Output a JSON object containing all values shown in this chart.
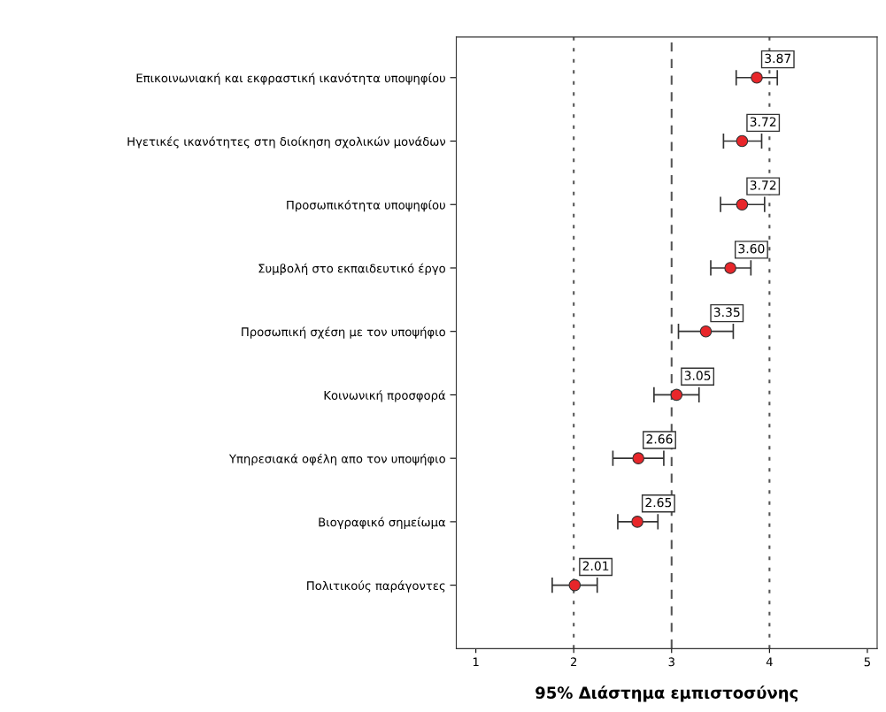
{
  "chart_data": {
    "type": "scatter",
    "orientation": "horizontal",
    "xlabel": "95% Διάστημα εμπιστοσύνης",
    "categories": [
      "Επικοινωνιακή και εκφραστική ικανότητα υποψηφίου",
      "Ηγετικές ικανότητες στη διοίκηση σχολικών μονάδων",
      "Προσωπικότητα υποψηφίου",
      "Συμβολή στο εκπαιδευτικό έργο",
      "Προσωπική σχέση με τον υποψήφιο",
      "Κοινωνική προσφορά",
      "Υπηρεσιακά οφέλη απο τον υποψήφιο",
      "Βιογραφικό σημείωμα",
      "Πολιτικούς παράγοντες"
    ],
    "color": "#e8262a",
    "values": [
      3.87,
      3.72,
      3.72,
      3.6,
      3.35,
      3.05,
      2.66,
      2.65,
      2.01
    ],
    "errors": [
      [
        3.66,
        4.08
      ],
      [
        3.53,
        3.92
      ],
      [
        3.5,
        3.95
      ],
      [
        3.4,
        3.81
      ],
      [
        3.07,
        3.63
      ],
      [
        2.82,
        3.28
      ],
      [
        2.4,
        2.92
      ],
      [
        2.45,
        2.86
      ],
      [
        1.78,
        2.24
      ]
    ],
    "xlim": [
      0.8,
      5.1
    ],
    "xticks": [
      1,
      2,
      3,
      4,
      5
    ],
    "ref_lines": [
      {
        "axis": "x",
        "value": 2,
        "line_style": "dotted",
        "color": "#555555"
      },
      {
        "axis": "x",
        "value": 3,
        "line_style": "dashed",
        "color": "#555555"
      },
      {
        "axis": "x",
        "value": 4,
        "line_style": "dotted",
        "color": "#555555"
      }
    ],
    "value_labels": [
      "3.87",
      "3.72",
      "3.72",
      "3.60",
      "3.35",
      "3.05",
      "2.66",
      "2.65",
      "2.01"
    ],
    "marker": "circle",
    "grid": false,
    "legend": false
  }
}
